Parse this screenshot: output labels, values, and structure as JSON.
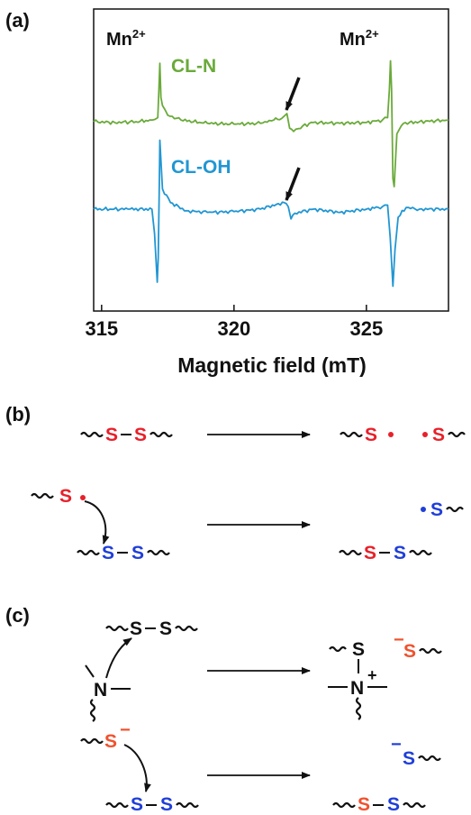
{
  "panels": {
    "a": "(a)",
    "b": "(b)",
    "c": "(c)"
  },
  "colors": {
    "green": "#6aaa3a",
    "blue": "#2196d3",
    "red": "#e8202a",
    "darkblue": "#1f3fd8",
    "orange": "#f0522e",
    "black": "#111111"
  },
  "chart_data": {
    "type": "line",
    "title": "",
    "xlabel": "Magnetic field (mT)",
    "ylabel": "",
    "xlim": [
      314.7,
      328.1
    ],
    "xticks": [
      315,
      320,
      325
    ],
    "tick_labels": [
      "315",
      "320",
      "325"
    ],
    "y_ticks_shown": false,
    "series": [
      {
        "name": "CL-N",
        "color": "#6aaa3a",
        "baseline": 1.0,
        "points": [
          [
            314.7,
            1.0
          ],
          [
            315.5,
            0.99
          ],
          [
            316.3,
            1.0
          ],
          [
            316.9,
            1.02
          ],
          [
            317.12,
            1.05
          ],
          [
            317.16,
            1.35
          ],
          [
            317.2,
            1.72
          ],
          [
            317.24,
            1.3
          ],
          [
            317.3,
            1.2
          ],
          [
            317.5,
            1.08
          ],
          [
            318,
            1.02
          ],
          [
            319,
            0.98
          ],
          [
            320,
            0.97
          ],
          [
            321,
            0.98
          ],
          [
            321.5,
            1.02
          ],
          [
            321.8,
            1.04
          ],
          [
            322.0,
            1.1
          ],
          [
            322.1,
            0.92
          ],
          [
            322.25,
            0.88
          ],
          [
            322.6,
            0.95
          ],
          [
            323,
            0.99
          ],
          [
            324,
            0.98
          ],
          [
            325,
            0.99
          ],
          [
            325.6,
            1.02
          ],
          [
            325.8,
            1.05
          ],
          [
            325.87,
            1.4
          ],
          [
            325.91,
            1.75
          ],
          [
            325.95,
            1.4
          ],
          [
            326.0,
            0.3
          ],
          [
            326.05,
            0.2
          ],
          [
            326.15,
            0.85
          ],
          [
            326.4,
            0.98
          ],
          [
            327,
            1.0
          ],
          [
            328.1,
            1.02
          ]
        ]
      },
      {
        "name": "CL-OH",
        "color": "#2196d3",
        "baseline": 0.0,
        "points": [
          [
            314.7,
            0.0
          ],
          [
            316,
            0.0
          ],
          [
            316.9,
            0.0
          ],
          [
            317.0,
            -0.3
          ],
          [
            317.1,
            -0.9
          ],
          [
            317.14,
            -0.6
          ],
          [
            317.18,
            0.3
          ],
          [
            317.2,
            0.85
          ],
          [
            317.3,
            0.25
          ],
          [
            317.6,
            0.08
          ],
          [
            318.2,
            -0.02
          ],
          [
            319,
            -0.04
          ],
          [
            320,
            -0.03
          ],
          [
            321,
            0.0
          ],
          [
            321.6,
            0.06
          ],
          [
            321.9,
            0.08
          ],
          [
            322.05,
            0.03
          ],
          [
            322.15,
            -0.12
          ],
          [
            322.3,
            -0.05
          ],
          [
            323,
            0.0
          ],
          [
            324,
            -0.04
          ],
          [
            325,
            0.0
          ],
          [
            325.6,
            0.03
          ],
          [
            325.8,
            0.05
          ],
          [
            325.9,
            -0.35
          ],
          [
            326.0,
            -0.95
          ],
          [
            326.08,
            -0.5
          ],
          [
            326.2,
            -0.1
          ],
          [
            326.5,
            0.02
          ],
          [
            327,
            0.0
          ],
          [
            328.1,
            0.0
          ]
        ]
      }
    ],
    "annotations": [
      {
        "text": "Mn",
        "sup": "2+",
        "x": 317.2
      },
      {
        "text": "Mn",
        "sup": "2+",
        "x": 325.9
      },
      {
        "type": "arrow",
        "x": 322.1,
        "series": "CL-N"
      },
      {
        "type": "arrow",
        "x": 322.1,
        "series": "CL-OH"
      }
    ]
  },
  "labels": {
    "mn": "Mn",
    "mn_sup": "2+",
    "S": "S",
    "N": "N",
    "plus": "+",
    "minus": "−",
    "dash": "–"
  }
}
